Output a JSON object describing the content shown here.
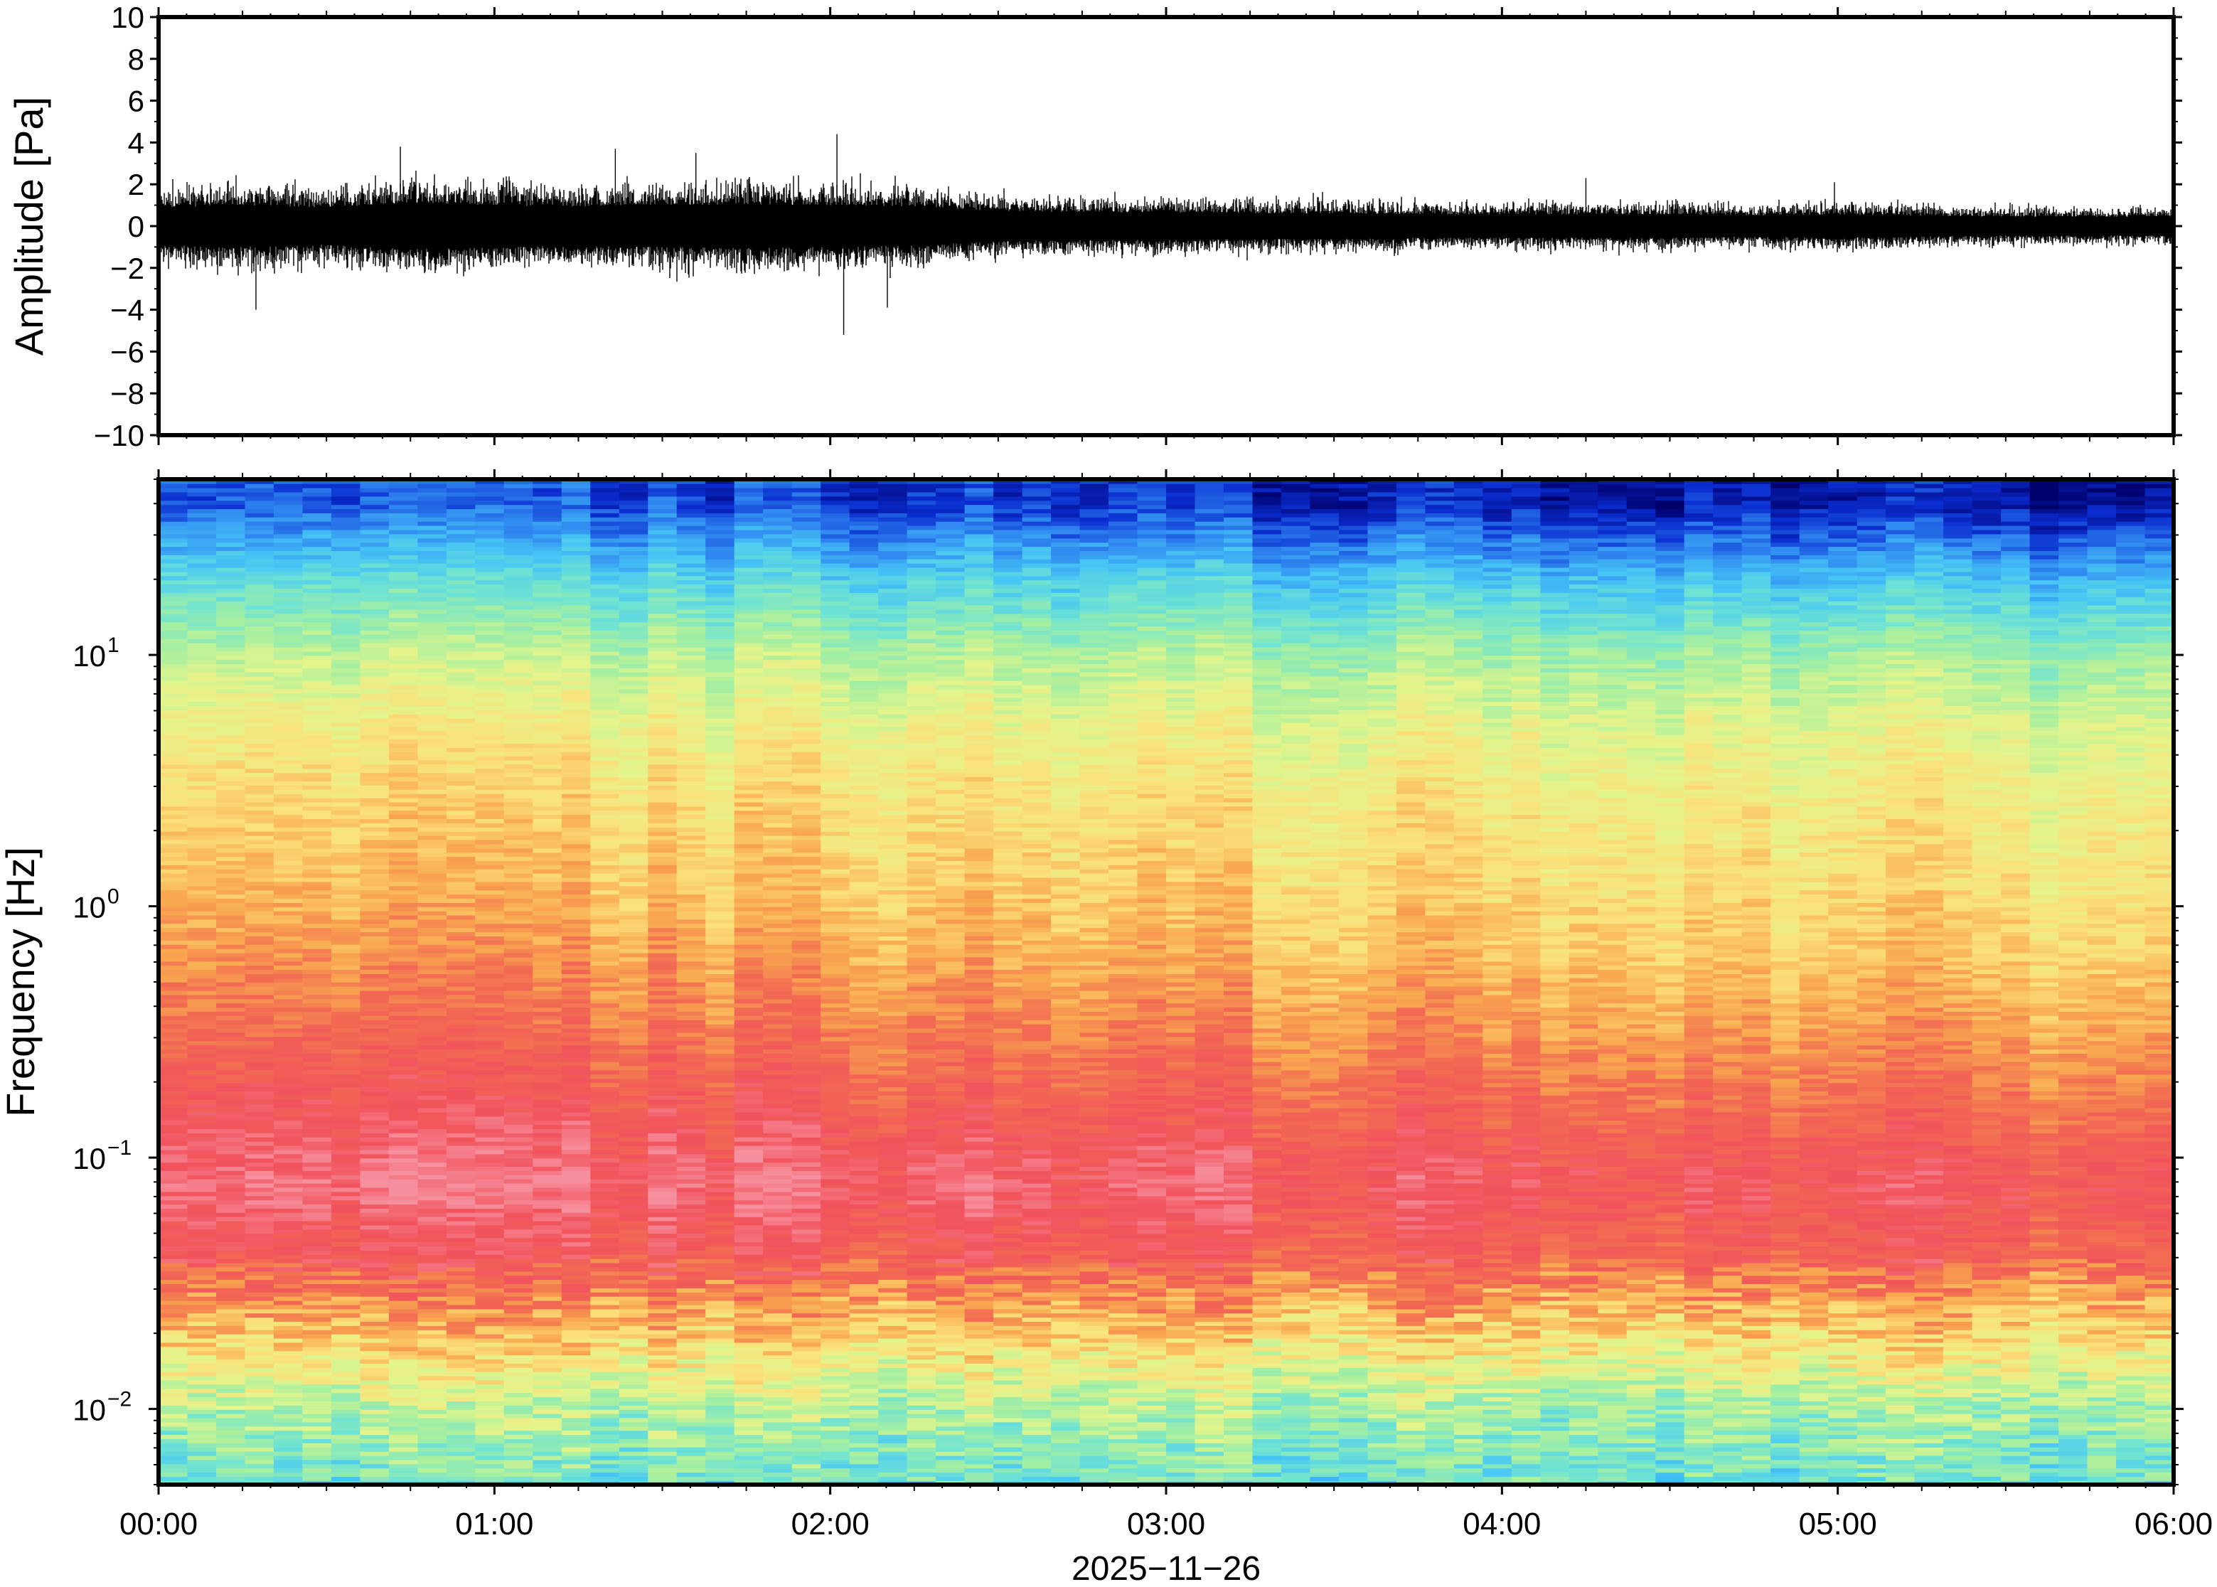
{
  "chart_data": [
    {
      "type": "line",
      "panel": "waveform",
      "title": "",
      "xlabel": "",
      "ylabel": "Amplitude [Pa]",
      "ylim": [
        -10,
        10
      ],
      "yticks": [
        10,
        8,
        6,
        4,
        2,
        0,
        -2,
        -4,
        -6,
        -8,
        -10
      ],
      "ytick_labels": [
        "10",
        "8",
        "6",
        "4",
        "2",
        "0",
        "−2",
        "−4",
        "−6",
        "−8",
        "−10"
      ],
      "xlim_hours": [
        0,
        6
      ],
      "line_color": "#000000",
      "grid": false,
      "envelope": {
        "time_hours": [
          0.0,
          0.25,
          0.5,
          0.75,
          1.0,
          1.25,
          1.5,
          1.75,
          2.0,
          2.25,
          2.5,
          2.75,
          3.0,
          3.25,
          3.5,
          3.75,
          4.0,
          4.25,
          4.5,
          4.75,
          5.0,
          5.25,
          5.5,
          5.75,
          6.0
        ],
        "typical_amplitude": [
          1.6,
          1.8,
          1.6,
          2.0,
          1.8,
          1.7,
          1.8,
          1.9,
          1.8,
          1.7,
          1.3,
          1.2,
          1.2,
          1.1,
          1.1,
          1.0,
          1.0,
          1.0,
          1.0,
          0.9,
          1.0,
          0.9,
          0.8,
          0.8,
          0.8
        ],
        "peaks": [
          {
            "t": 0.29,
            "value": -4.0
          },
          {
            "t": 0.72,
            "value": 3.8
          },
          {
            "t": 1.36,
            "value": 3.7
          },
          {
            "t": 1.6,
            "value": 3.5
          },
          {
            "t": 2.02,
            "value": 4.4
          },
          {
            "t": 2.04,
            "value": -5.2
          },
          {
            "t": 2.17,
            "value": -3.9
          },
          {
            "t": 4.25,
            "value": 2.3
          },
          {
            "t": 4.99,
            "value": 2.1
          }
        ]
      }
    },
    {
      "type": "heatmap",
      "panel": "spectrogram",
      "title": "",
      "xlabel": "2025−11−26",
      "ylabel": "Frequency [Hz]",
      "yscale": "log",
      "ylim": [
        0.005,
        50
      ],
      "yticks": [
        0.01,
        0.1,
        1,
        10
      ],
      "ytick_labels": [
        {
          "base": "10",
          "exp": "−2"
        },
        {
          "base": "10",
          "exp": "−1"
        },
        {
          "base": "10",
          "exp": "0"
        },
        {
          "base": "10",
          "exp": "1"
        }
      ],
      "xticks_hours": [
        0,
        1,
        2,
        3,
        4,
        5,
        6
      ],
      "xtick_labels": [
        "00:00",
        "01:00",
        "02:00",
        "03:00",
        "04:00",
        "05:00",
        "06:00"
      ],
      "colormap": "rainbow (dark blue = low power, pink/red = high power)",
      "colormap_stops": [
        "#00006b",
        "#0a2ccf",
        "#2f86f0",
        "#47c6f5",
        "#6fe3d2",
        "#a6efa0",
        "#e4f58c",
        "#fbe07a",
        "#f9a950",
        "#f26a52",
        "#f1525c",
        "#f7909e"
      ],
      "profile_log10_freq": [
        -2.3,
        -2.0,
        -1.7,
        -1.4,
        -1.1,
        -0.8,
        -0.5,
        -0.2,
        0.1,
        0.4,
        0.7,
        1.0,
        1.3,
        1.6
      ],
      "profile_level_early": [
        0.36,
        0.48,
        0.68,
        0.88,
        0.97,
        0.9,
        0.83,
        0.76,
        0.7,
        0.66,
        0.6,
        0.5,
        0.34,
        0.14
      ],
      "profile_level_late": [
        0.36,
        0.45,
        0.64,
        0.84,
        0.89,
        0.81,
        0.73,
        0.66,
        0.62,
        0.59,
        0.54,
        0.44,
        0.26,
        0.04
      ],
      "grid": false
    }
  ]
}
